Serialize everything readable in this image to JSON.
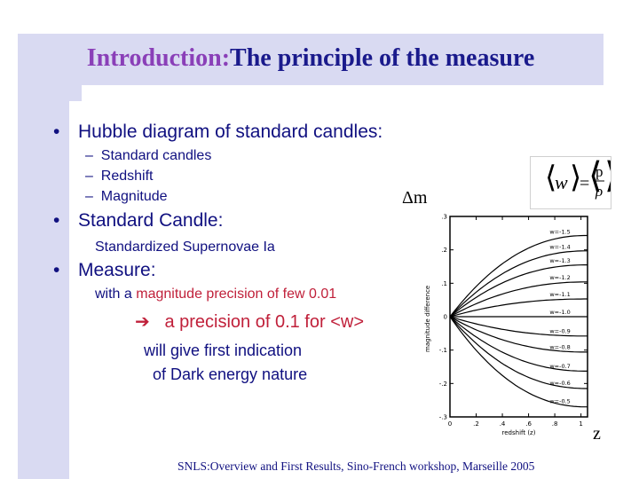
{
  "slide": {
    "title_intro": "Introduction:",
    "title_rest": "The principle of the measure",
    "bullets": [
      {
        "label": "Hubble diagram of standard candles:"
      },
      {
        "label": "Standard Candle:"
      },
      {
        "label": "Measure:"
      }
    ],
    "sub_items": [
      "Standard candles",
      "Redshift",
      "Magnitude"
    ],
    "standard_candle_text": "Standardized Supernovae Ia",
    "measure_prefix": "with a ",
    "measure_red": "magnitude precision of few 0.01",
    "arrow_text": "a precision of 0.1 for <w>",
    "indication_line1": "will give first indication",
    "indication_line2": "of Dark energy nature",
    "footer": "SNLS:Overview and First Results, Sino-French workshop, Marseille 2005"
  },
  "labels": {
    "delta_m": "Δm",
    "z": "z",
    "formula": {
      "w": "w",
      "p": "p",
      "rho": "ρ"
    }
  },
  "chart_data": {
    "type": "line",
    "xlabel": "redshift (z)",
    "ylabel": "magnitude difference",
    "xlim": [
      0,
      1.05
    ],
    "ylim": [
      -0.3,
      0.3
    ],
    "xticks": [
      0,
      0.2,
      0.4,
      0.6,
      0.8,
      1.0
    ],
    "xtick_labels": [
      "0",
      ".2",
      ".4",
      ".6",
      ".8",
      "1"
    ],
    "yticks": [
      -0.3,
      -0.2,
      -0.1,
      0,
      0.1,
      0.2,
      0.3
    ],
    "ytick_labels": [
      "-.3",
      "-.2",
      "-.1",
      "0",
      ".1",
      ".2",
      ".3"
    ],
    "series": [
      {
        "name": "w=-1.5",
        "end": 0.243
      },
      {
        "name": "w=-1.4",
        "end": 0.197
      },
      {
        "name": "w=-1.3",
        "end": 0.155
      },
      {
        "name": "w=-1.2",
        "end": 0.104
      },
      {
        "name": "w=-1.1",
        "end": 0.053
      },
      {
        "name": "w=-1.0",
        "end": 0.0
      },
      {
        "name": "w=-0.9",
        "end": -0.058
      },
      {
        "name": "w=-0.8",
        "end": -0.106
      },
      {
        "name": "w=-0.7",
        "end": -0.163
      },
      {
        "name": "w=-0.6",
        "end": -0.215
      },
      {
        "name": "w=-0.5",
        "end": -0.27
      }
    ]
  }
}
